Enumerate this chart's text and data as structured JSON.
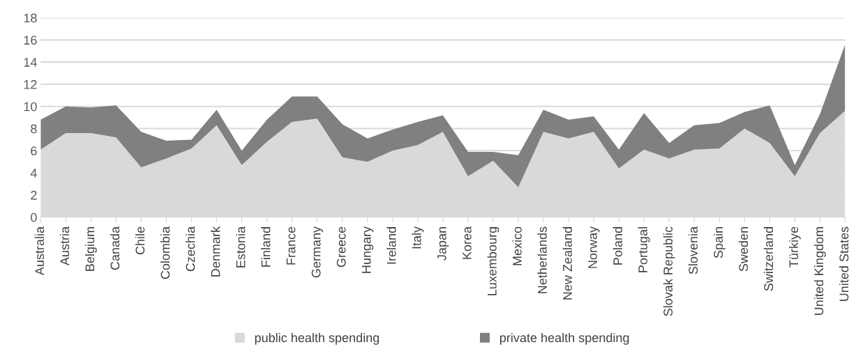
{
  "chart_data": {
    "type": "area",
    "stacked": true,
    "categories": [
      "Australia",
      "Austria",
      "Belgium",
      "Canada",
      "Chile",
      "Colombia",
      "Czechia",
      "Denmark",
      "Estonia",
      "Finland",
      "France",
      "Germany",
      "Greece",
      "Hungary",
      "Ireland",
      "Italy",
      "Japan",
      "Korea",
      "Luxembourg",
      "Mexico",
      "Netherlands",
      "New Zealand",
      "Norway",
      "Poland",
      "Portugal",
      "Slovak Republic",
      "Slovenia",
      "Spain",
      "Sweden",
      "Switzerland",
      "Türkiye",
      "United Kingdom",
      "United States"
    ],
    "series": [
      {
        "name": "public health spending",
        "color": "#d9d9d9",
        "values": [
          6.1,
          7.6,
          7.6,
          7.2,
          4.5,
          5.3,
          6.2,
          8.3,
          4.7,
          6.8,
          8.6,
          8.9,
          5.4,
          5.0,
          6.0,
          6.5,
          7.7,
          3.7,
          5.1,
          2.7,
          7.7,
          7.1,
          7.7,
          4.4,
          6.1,
          5.3,
          6.1,
          6.2,
          8.0,
          6.7,
          3.7,
          7.6,
          9.6
        ]
      },
      {
        "name": "private health spending",
        "color": "#808080",
        "values": [
          2.7,
          2.4,
          2.3,
          2.9,
          3.2,
          1.6,
          0.8,
          1.4,
          1.3,
          2.0,
          2.3,
          2.0,
          3.0,
          2.1,
          1.9,
          2.1,
          1.5,
          2.2,
          0.8,
          2.9,
          2.0,
          1.7,
          1.4,
          1.7,
          3.3,
          1.4,
          2.2,
          2.3,
          1.5,
          3.4,
          1.0,
          1.7,
          6.0
        ]
      }
    ],
    "ylim": [
      0,
      18
    ],
    "yticks": [
      0,
      2,
      4,
      6,
      8,
      10,
      12,
      14,
      16,
      18
    ],
    "grid": "y",
    "legend": "bottom"
  }
}
